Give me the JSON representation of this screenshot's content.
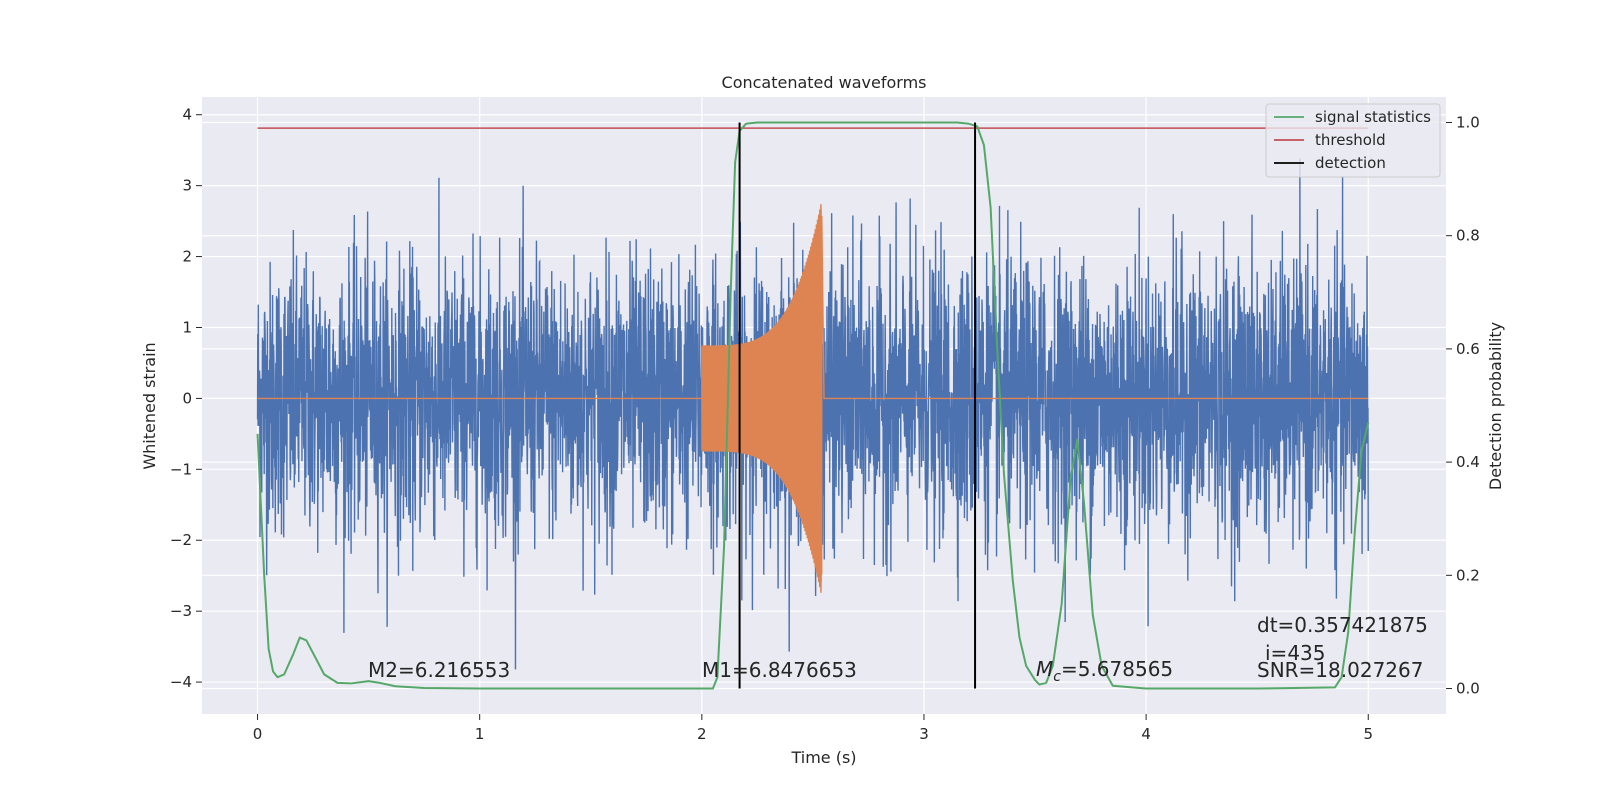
{
  "chart_data": {
    "type": "line",
    "title": "Concatenated waveforms",
    "xlabel": "Time (s)",
    "ylabel": "Whitened strain",
    "y2label": "Detection probability",
    "xlim": [
      -0.25,
      5.35
    ],
    "ylim": [
      -4.45,
      4.25
    ],
    "y2lim": [
      -0.045,
      1.045
    ],
    "xticks": [
      0,
      1,
      2,
      3,
      4,
      5
    ],
    "yticks": [
      -4,
      -3,
      -2,
      -1,
      0,
      1,
      2,
      3,
      4
    ],
    "y2ticks": [
      0.0,
      0.2,
      0.4,
      0.6,
      0.8,
      1.0
    ],
    "grid": true,
    "legend_location": "top-right",
    "series": [
      {
        "name": "",
        "color": "#4C72B0",
        "axis": "left",
        "description_kind": "noise",
        "x_range": [
          0,
          5
        ],
        "abs_peak": 4.2
      },
      {
        "name": "",
        "color": "#DD8452",
        "axis": "left",
        "description_kind": "chirp",
        "x_start": 2.0,
        "x_end": 2.54,
        "amplitude_start": 0.75,
        "amplitude_peak": 2.8
      },
      {
        "name": "signal statistics",
        "color": "#55A868",
        "axis": "right",
        "x": [
          0,
          0.03,
          0.05,
          0.07,
          0.09,
          0.12,
          0.16,
          0.19,
          0.22,
          0.26,
          0.3,
          0.36,
          0.42,
          0.5,
          0.55,
          0.62,
          0.75,
          1.0,
          1.5,
          1.9,
          2.05,
          2.07,
          2.1,
          2.13,
          2.15,
          2.17,
          2.2,
          2.25,
          3.15,
          3.2,
          3.24,
          3.27,
          3.3,
          3.33,
          3.36,
          3.4,
          3.43,
          3.46,
          3.5,
          3.52,
          3.55,
          3.58,
          3.62,
          3.66,
          3.69,
          3.72,
          3.76,
          3.8,
          3.85,
          4.0,
          4.5,
          4.85,
          4.88,
          4.91,
          4.94,
          4.97,
          5.0
        ],
        "y": [
          0.45,
          0.2,
          0.07,
          0.03,
          0.02,
          0.025,
          0.06,
          0.09,
          0.085,
          0.055,
          0.025,
          0.01,
          0.009,
          0.013,
          0.01,
          0.004,
          0.001,
          0.0,
          0.0,
          0.0,
          0.0,
          0.02,
          0.25,
          0.7,
          0.93,
          0.985,
          0.998,
          1.0,
          1.0,
          0.998,
          0.993,
          0.96,
          0.85,
          0.6,
          0.38,
          0.19,
          0.09,
          0.04,
          0.015,
          0.007,
          0.01,
          0.04,
          0.15,
          0.37,
          0.44,
          0.33,
          0.13,
          0.04,
          0.005,
          0.0,
          0.0,
          0.002,
          0.02,
          0.1,
          0.28,
          0.42,
          0.47
        ]
      },
      {
        "name": "threshold",
        "color": "#C44E52",
        "axis": "right",
        "value": 0.99
      },
      {
        "name": "detection",
        "color": "#000000",
        "axis": "right",
        "x": [
          2.17,
          3.23
        ]
      }
    ],
    "annotations": [
      {
        "text": "M2=6.216553"
      },
      {
        "text": "M1=6.8476653"
      },
      {
        "text_main": "M",
        "text_sub": "c",
        "text_rest": "=5.678565"
      },
      {
        "text": "dt=0.357421875"
      },
      {
        "text": "i=435"
      },
      {
        "text": "SNR=18.027267"
      }
    ]
  }
}
